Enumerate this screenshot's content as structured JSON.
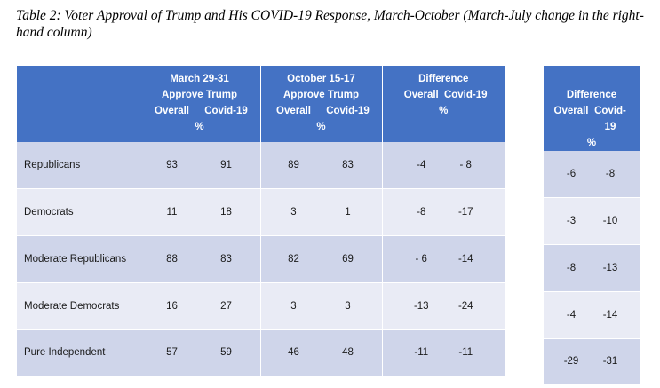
{
  "caption": "Table 2: Voter Approval of Trump and His COVID-19 Response, March-October (March-July change in the right-hand column)",
  "main_table": {
    "groups": [
      {
        "line1": "March 29-31",
        "line2": "Approve Trump",
        "col1": "Overall",
        "col2": "Covid-19",
        "unit": "%"
      },
      {
        "line1": "October 15-17",
        "line2": "Approve Trump",
        "col1": "Overall",
        "col2": "Covid-19",
        "unit": "%"
      },
      {
        "line1": "",
        "line2": "Difference",
        "col1": "Overall",
        "col2": "Covid-19",
        "unit": "%"
      }
    ],
    "rows": [
      {
        "label": "Republicans",
        "values": [
          "93",
          "91",
          "89",
          "83",
          "-4",
          "- 8"
        ]
      },
      {
        "label": "Democrats",
        "values": [
          "11",
          "18",
          "3",
          "1",
          "-8",
          "-17"
        ]
      },
      {
        "label": "Moderate Republicans",
        "values": [
          "88",
          "83",
          "82",
          "69",
          "- 6",
          "-14"
        ]
      },
      {
        "label": "Moderate Democrats",
        "values": [
          "16",
          "27",
          "3",
          "3",
          "-13",
          "-24"
        ]
      },
      {
        "label": "Pure Independent",
        "values": [
          "57",
          "59",
          "46",
          "48",
          "-11",
          "-11"
        ]
      }
    ]
  },
  "side_table": {
    "title": "Difference",
    "col1": "Overall",
    "col2": "Covid-19",
    "unit": "%",
    "rows": [
      [
        "-6",
        "-8"
      ],
      [
        "-3",
        "-10"
      ],
      [
        "-8",
        "-13"
      ],
      [
        "-4",
        "-14"
      ],
      [
        "-29",
        "-31"
      ]
    ]
  },
  "colors": {
    "header": "#4472c4",
    "band_dark": "#cfd5ea",
    "band_light": "#e9ebf5"
  }
}
